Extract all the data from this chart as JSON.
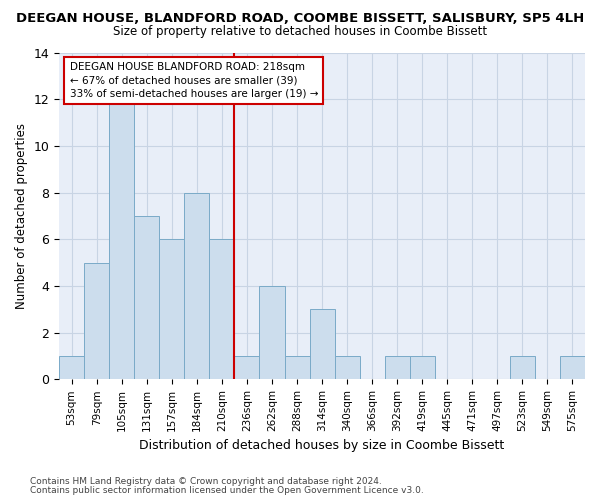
{
  "title": "DEEGAN HOUSE, BLANDFORD ROAD, COOMBE BISSETT, SALISBURY, SP5 4LH",
  "subtitle": "Size of property relative to detached houses in Coombe Bissett",
  "xlabel": "Distribution of detached houses by size in Coombe Bissett",
  "ylabel": "Number of detached properties",
  "bins": [
    "53sqm",
    "79sqm",
    "105sqm",
    "131sqm",
    "157sqm",
    "184sqm",
    "210sqm",
    "236sqm",
    "262sqm",
    "288sqm",
    "314sqm",
    "340sqm",
    "366sqm",
    "392sqm",
    "419sqm",
    "445sqm",
    "471sqm",
    "497sqm",
    "523sqm",
    "549sqm",
    "575sqm"
  ],
  "values": [
    1,
    5,
    12,
    7,
    6,
    8,
    6,
    1,
    4,
    1,
    3,
    1,
    0,
    1,
    1,
    0,
    0,
    0,
    1,
    0,
    1
  ],
  "bar_color": "#ccdded",
  "bar_edge_color": "#7aaac8",
  "annotation_label": "DEEGAN HOUSE BLANDFORD ROAD: 218sqm",
  "annotation_line1": "← 67% of detached houses are smaller (39)",
  "annotation_line2": "33% of semi-detached houses are larger (19) →",
  "vline_color": "#cc0000",
  "vline_x_index": 6.5,
  "ylim": [
    0,
    14
  ],
  "yticks": [
    0,
    2,
    4,
    6,
    8,
    10,
    12,
    14
  ],
  "grid_color": "#c8d4e4",
  "background_color": "#e8eef8",
  "footnote1": "Contains HM Land Registry data © Crown copyright and database right 2024.",
  "footnote2": "Contains public sector information licensed under the Open Government Licence v3.0."
}
